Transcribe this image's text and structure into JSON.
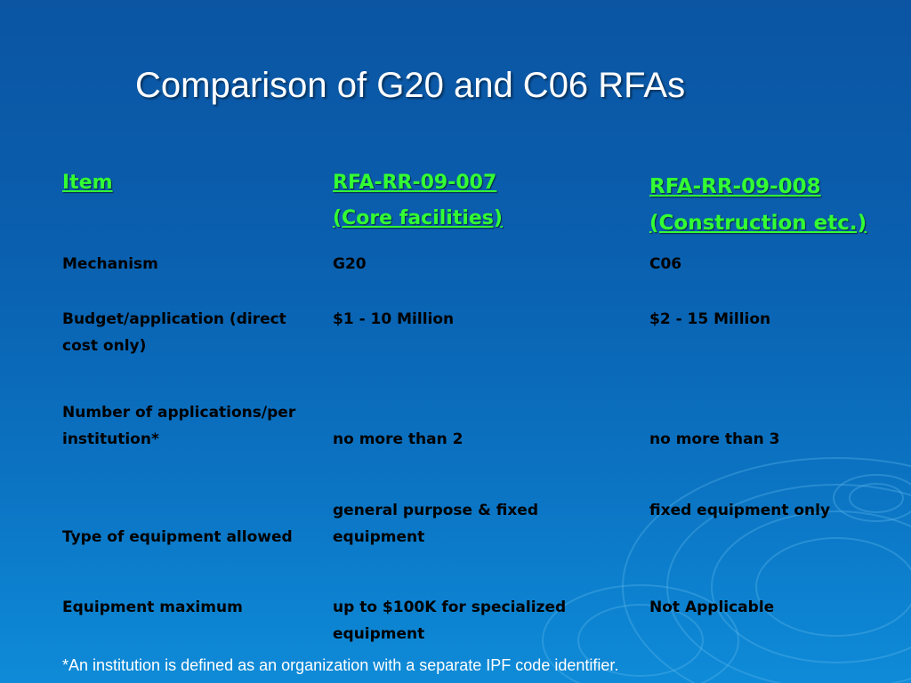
{
  "title": "Comparison of G20 and C06 RFAs",
  "header": {
    "item": "Item",
    "col1_line1": "RFA-RR-09-007",
    "col1_line2": "(Core facilities)",
    "col2_line1": "RFA-RR-09-008",
    "col2_line2": "(Construction etc.)"
  },
  "rows": [
    {
      "item": "Mechanism",
      "g20": "G20",
      "c06": "C06"
    },
    {
      "item": "Budget/application (direct cost only)",
      "g20": "$1 - 10 Million",
      "c06": "$2 - 15 Million"
    },
    {
      "item": "Number of applications/per institution*",
      "g20": "no more than 2",
      "c06": "no more than 3"
    },
    {
      "item": "Type of equipment allowed",
      "g20": "general purpose & fixed equipment",
      "c06": "fixed equipment only"
    },
    {
      "item": "Equipment maximum",
      "g20": "up to $100K for specialized equipment",
      "c06": "Not Applicable"
    }
  ],
  "footnote": "*An institution is defined as an organization with a separate IPF code identifier.",
  "colors": {
    "background_top": "#0b55a3",
    "background_bottom": "#0e8bd8",
    "header_text": "#33ff33",
    "body_text": "#000000",
    "title_text": "#ffffff"
  }
}
